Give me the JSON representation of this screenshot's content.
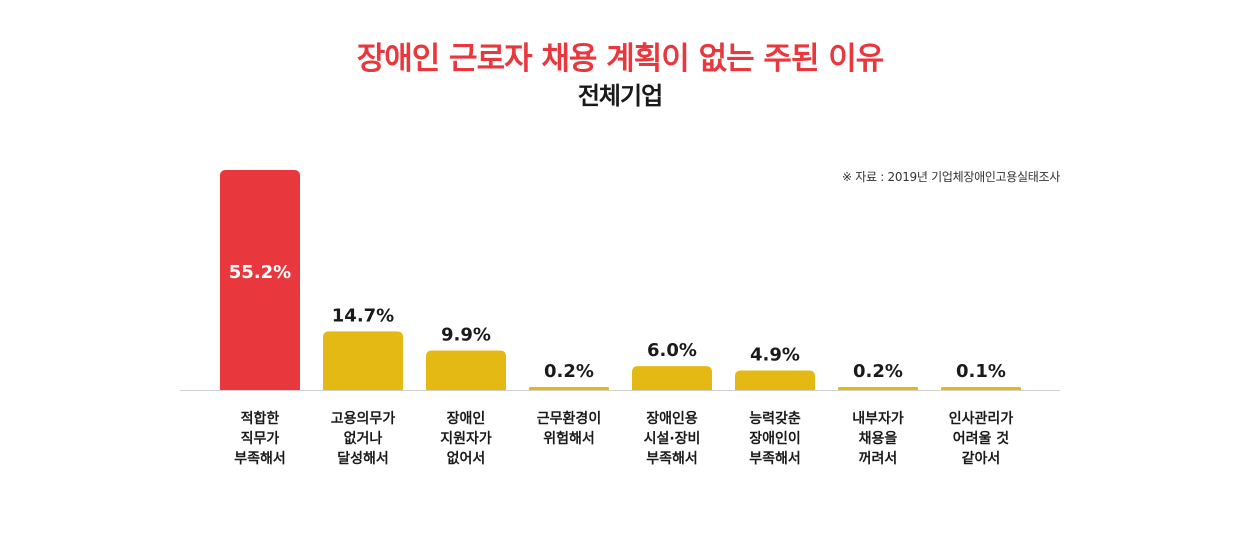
{
  "title": "장애인 근로자 채용 계획이 없는 주된 이유",
  "subtitle": "전체기업",
  "source": "※ 자료 : 2019년 기업체장애인고용실태조사",
  "colors": {
    "highlight": "#e8383d",
    "bar": "#e5b913",
    "baseline": "#cfcfcf",
    "label": "#1a1a1a"
  },
  "chart_data": {
    "type": "bar",
    "categories": [
      [
        "적합한",
        "직무가",
        "부족해서"
      ],
      [
        "고용의무가",
        "없거나",
        "달성해서"
      ],
      [
        "장애인",
        "지원자가",
        "없어서"
      ],
      [
        "근무환경이",
        "위험해서"
      ],
      [
        "장애인용",
        "시설·장비",
        "부족해서"
      ],
      [
        "능력갖춘",
        "장애인이",
        "부족해서"
      ],
      [
        "내부자가",
        "채용을",
        "꺼려서"
      ],
      [
        "인사관리가",
        "어려울 것",
        "같아서"
      ]
    ],
    "values": [
      55.2,
      14.7,
      9.9,
      0.2,
      6.0,
      4.9,
      0.2,
      0.1
    ],
    "value_labels": [
      "55.2%",
      "14.7%",
      "9.9%",
      "0.2%",
      "6.0%",
      "4.9%",
      "0.2%",
      "0.1%"
    ],
    "highlight_index": 0,
    "ylim": [
      0,
      55.2
    ],
    "grid": false,
    "legend": "none"
  }
}
